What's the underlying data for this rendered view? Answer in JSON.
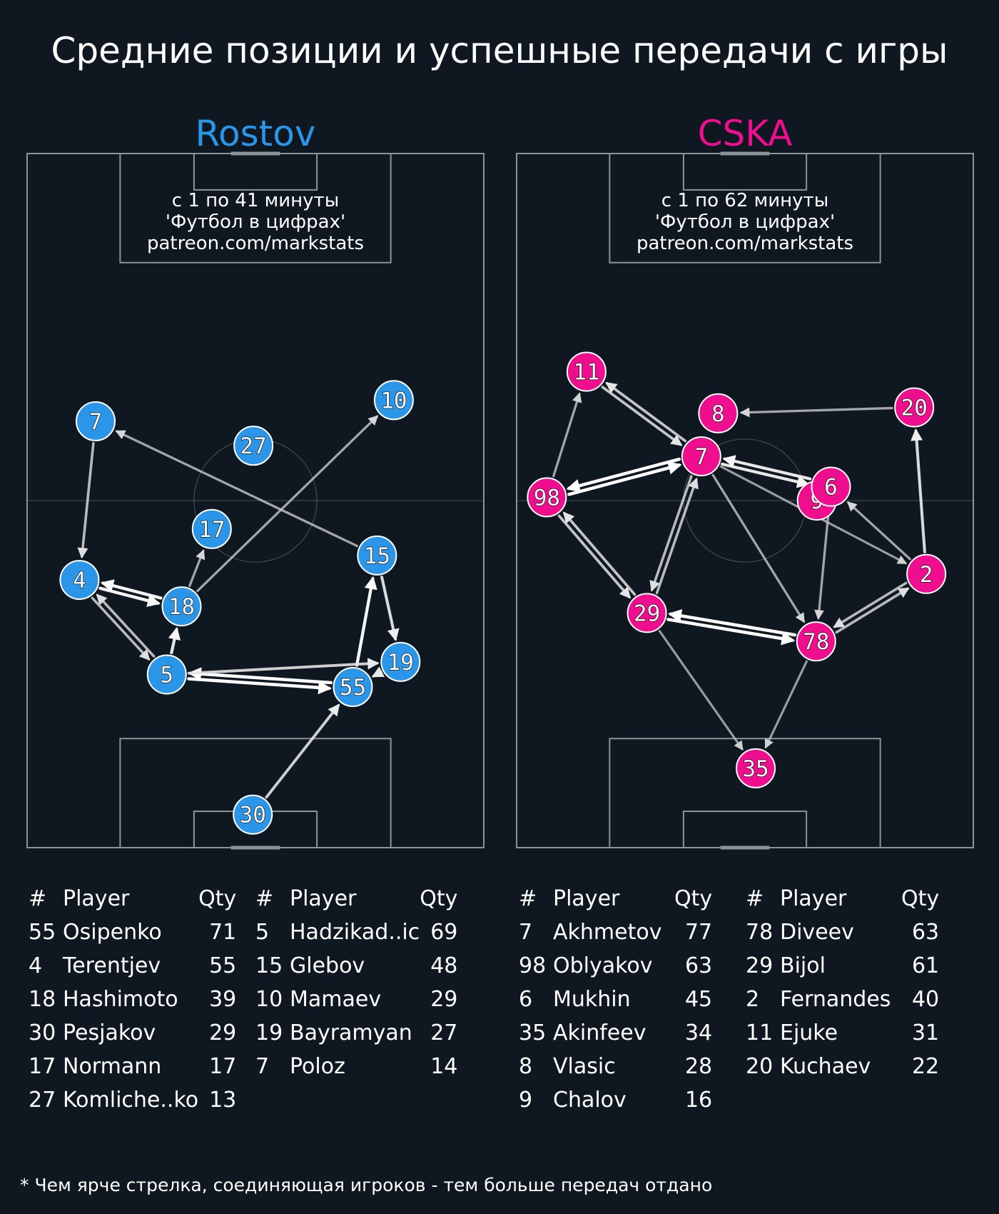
{
  "title": "Средние позиции и успешные передачи с игры",
  "footnote": "* Чем ярче стрелка, соединяющая игроков - тем больше передач отдано",
  "colors": {
    "background": "#0f1820",
    "pitch_lines": "#8a9599",
    "rostov": "#2b95e8",
    "cska": "#ee0e8e",
    "node_text": "#ffffff"
  },
  "chart_data": [
    {
      "type": "pass_network",
      "team": "Rostov",
      "team_color": "#2b95e8",
      "note_lines": [
        "с 1 по 41 минуты",
        "'Футбол в цифрах'",
        "patreon.com/markstats"
      ],
      "pitch": {
        "width": 68,
        "length": 105
      },
      "players": [
        {
          "num": "7",
          "x": 10.2,
          "y": 64.5
        },
        {
          "num": "27",
          "x": 33.7,
          "y": 60.8
        },
        {
          "num": "10",
          "x": 54.6,
          "y": 67.7
        },
        {
          "num": "17",
          "x": 27.5,
          "y": 48.2
        },
        {
          "num": "15",
          "x": 52.1,
          "y": 44.2
        },
        {
          "num": "4",
          "x": 7.8,
          "y": 40.5
        },
        {
          "num": "18",
          "x": 23.0,
          "y": 36.5
        },
        {
          "num": "19",
          "x": 55.6,
          "y": 28.1
        },
        {
          "num": "5",
          "x": 20.8,
          "y": 26.2
        },
        {
          "num": "55",
          "x": 48.5,
          "y": 24.3
        },
        {
          "num": "30",
          "x": 33.6,
          "y": 5.0
        }
      ],
      "passes": [
        {
          "from": "4",
          "to": "18",
          "intensity": 0.95
        },
        {
          "from": "18",
          "to": "4",
          "intensity": 0.95
        },
        {
          "from": "5",
          "to": "55",
          "intensity": 1.0
        },
        {
          "from": "55",
          "to": "5",
          "intensity": 1.0
        },
        {
          "from": "55",
          "to": "15",
          "intensity": 0.95
        },
        {
          "from": "15",
          "to": "19",
          "intensity": 0.85
        },
        {
          "from": "5",
          "to": "18",
          "intensity": 0.9
        },
        {
          "from": "30",
          "to": "55",
          "intensity": 0.8
        },
        {
          "from": "5",
          "to": "19",
          "intensity": 0.8
        },
        {
          "from": "19",
          "to": "55",
          "intensity": 0.8
        },
        {
          "from": "5",
          "to": "4",
          "intensity": 0.7
        },
        {
          "from": "4",
          "to": "5",
          "intensity": 0.7
        },
        {
          "from": "7",
          "to": "4",
          "intensity": 0.7
        },
        {
          "from": "18",
          "to": "17",
          "intensity": 0.6
        },
        {
          "from": "18",
          "to": "10",
          "intensity": 0.6
        },
        {
          "from": "15",
          "to": "7",
          "intensity": 0.6
        }
      ],
      "table": [
        {
          "num": "55",
          "player": "Osipenko",
          "qty": 71
        },
        {
          "num": "4",
          "player": "Terentjev",
          "qty": 55
        },
        {
          "num": "18",
          "player": "Hashimoto",
          "qty": 39
        },
        {
          "num": "30",
          "player": "Pesjakov",
          "qty": 29
        },
        {
          "num": "17",
          "player": "Normann",
          "qty": 17
        },
        {
          "num": "27",
          "player": "Komliche..ko",
          "qty": 13
        },
        {
          "num": "5",
          "player": "Hadzikad..ic",
          "qty": 69
        },
        {
          "num": "15",
          "player": "Glebov",
          "qty": 48
        },
        {
          "num": "10",
          "player": "Mamaev",
          "qty": 29
        },
        {
          "num": "19",
          "player": "Bayramyan",
          "qty": 27
        },
        {
          "num": "7",
          "player": "Poloz",
          "qty": 14
        }
      ]
    },
    {
      "type": "pass_network",
      "team": "CSKA",
      "team_color": "#ee0e8e",
      "note_lines": [
        "с 1 по 62 минуты",
        "'Футбол в цифрах'",
        "patreon.com/markstats"
      ],
      "pitch": {
        "width": 68,
        "length": 105
      },
      "players": [
        {
          "num": "11",
          "x": 10.4,
          "y": 72.0
        },
        {
          "num": "8",
          "x": 30.0,
          "y": 65.7
        },
        {
          "num": "20",
          "x": 59.2,
          "y": 66.6
        },
        {
          "num": "7",
          "x": 27.5,
          "y": 59.2
        },
        {
          "num": "98",
          "x": 4.5,
          "y": 53.0
        },
        {
          "num": "9",
          "x": 44.7,
          "y": 52.5
        },
        {
          "num": "6",
          "x": 46.8,
          "y": 54.6
        },
        {
          "num": "2",
          "x": 61.0,
          "y": 41.4
        },
        {
          "num": "29",
          "x": 19.4,
          "y": 35.5
        },
        {
          "num": "78",
          "x": 44.6,
          "y": 31.2
        },
        {
          "num": "35",
          "x": 35.6,
          "y": 12.0
        }
      ],
      "passes": [
        {
          "from": "29",
          "to": "78",
          "intensity": 1.0
        },
        {
          "from": "78",
          "to": "29",
          "intensity": 1.0
        },
        {
          "from": "98",
          "to": "7",
          "intensity": 1.0
        },
        {
          "from": "7",
          "to": "98",
          "intensity": 1.0
        },
        {
          "from": "7",
          "to": "6",
          "intensity": 0.9
        },
        {
          "from": "6",
          "to": "7",
          "intensity": 0.9
        },
        {
          "from": "2",
          "to": "20",
          "intensity": 0.85
        },
        {
          "from": "11",
          "to": "7",
          "intensity": 0.75
        },
        {
          "from": "7",
          "to": "11",
          "intensity": 0.75
        },
        {
          "from": "98",
          "to": "29",
          "intensity": 0.75
        },
        {
          "from": "29",
          "to": "98",
          "intensity": 0.75
        },
        {
          "from": "78",
          "to": "2",
          "intensity": 0.7
        },
        {
          "from": "2",
          "to": "78",
          "intensity": 0.7
        },
        {
          "from": "7",
          "to": "29",
          "intensity": 0.7
        },
        {
          "from": "29",
          "to": "7",
          "intensity": 0.7
        },
        {
          "from": "20",
          "to": "8",
          "intensity": 0.6
        },
        {
          "from": "98",
          "to": "11",
          "intensity": 0.6
        },
        {
          "from": "7",
          "to": "78",
          "intensity": 0.6
        },
        {
          "from": "6",
          "to": "78",
          "intensity": 0.6
        },
        {
          "from": "2",
          "to": "6",
          "intensity": 0.6
        },
        {
          "from": "7",
          "to": "2",
          "intensity": 0.55
        },
        {
          "from": "29",
          "to": "35",
          "intensity": 0.55
        },
        {
          "from": "78",
          "to": "35",
          "intensity": 0.55
        }
      ],
      "table": [
        {
          "num": "7",
          "player": "Akhmetov",
          "qty": 77
        },
        {
          "num": "98",
          "player": "Oblyakov",
          "qty": 63
        },
        {
          "num": "6",
          "player": "Mukhin",
          "qty": 45
        },
        {
          "num": "35",
          "player": "Akinfeev",
          "qty": 34
        },
        {
          "num": "8",
          "player": "Vlasic",
          "qty": 28
        },
        {
          "num": "9",
          "player": "Chalov",
          "qty": 16
        },
        {
          "num": "78",
          "player": "Diveev",
          "qty": 63
        },
        {
          "num": "29",
          "player": "Bijol",
          "qty": 61
        },
        {
          "num": "2",
          "player": "Fernandes",
          "qty": 40
        },
        {
          "num": "11",
          "player": "Ejuke",
          "qty": 31
        },
        {
          "num": "20",
          "player": "Kuchaev",
          "qty": 22
        }
      ]
    }
  ],
  "table_headers": {
    "num": "#",
    "player": "Player",
    "qty": "Qty"
  }
}
